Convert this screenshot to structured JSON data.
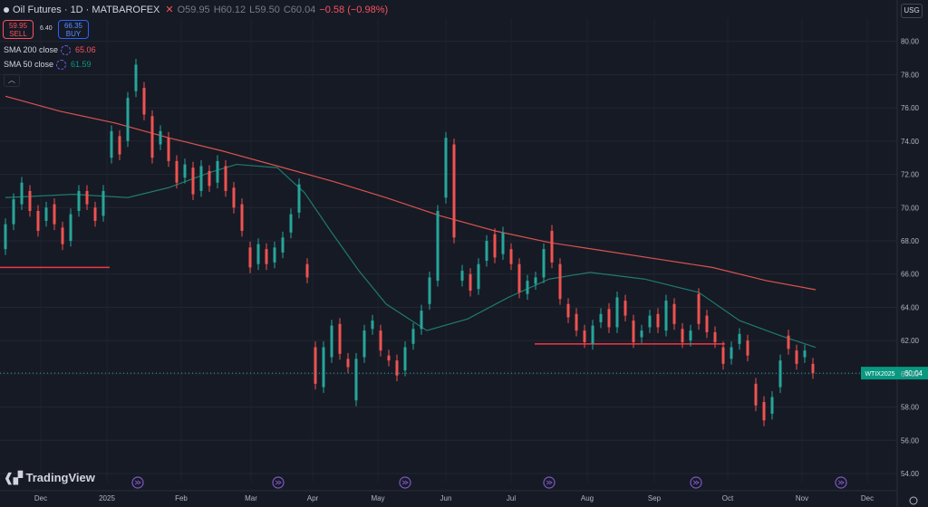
{
  "header": {
    "symbol": "Oil Futures · 1D · MATBAROFEX",
    "open": "O59.95",
    "high": "H60.12",
    "low": "L59.50",
    "close": "C60.04",
    "change": "−0.58 (−0.98%)",
    "sell_price": "59.95",
    "sell_label": "SELL",
    "buy_price": "66.35",
    "buy_label": "BUY",
    "spread": "6.40",
    "collapse_icon": "chevron-up-icon",
    "close_icon": "close-icon"
  },
  "indicators": [
    {
      "label": "SMA 200 close",
      "value": "65.06",
      "color": "#f7525f"
    },
    {
      "label": "SMA 50 close",
      "value": "61.59",
      "color": "#089981"
    }
  ],
  "currency_button": "USG",
  "price_tag": {
    "symbol": "WTIX2025",
    "value": "60.04",
    "color": "#089981"
  },
  "watermark": "TradingView",
  "colors": {
    "up": "#26a69a",
    "down": "#ef5350",
    "sma200": "#d9534f",
    "sma50": "#1f7a6d"
  },
  "chart_data": {
    "type": "candlestick",
    "ylim": [
      54.6,
      81.4
    ],
    "yticks": [
      "80.00",
      "78.00",
      "76.00",
      "74.00",
      "72.00",
      "70.00",
      "68.00",
      "66.00",
      "64.00",
      "62.00",
      "60.00",
      "58.00",
      "56.00",
      "54.00"
    ],
    "xticks": [
      "Dec",
      "2025",
      "Feb",
      "Mar",
      "Apr",
      "May",
      "Jun",
      "Jul",
      "Aug",
      "Sep",
      "Oct",
      "Nov",
      "Dec"
    ],
    "current_price": 60.04,
    "horizontal_lines": [
      {
        "from": "2024-11-21",
        "to": "2024-12-26",
        "y": 66.4
      },
      {
        "from": "2025-07-22",
        "to": "2025-09-29",
        "y": 61.8
      }
    ],
    "sma200": [
      [
        0,
        76.7
      ],
      [
        20,
        75.8
      ],
      [
        40,
        75.1
      ],
      [
        60,
        74.2
      ],
      [
        80,
        73.4
      ],
      [
        100,
        72.5
      ],
      [
        120,
        71.6
      ],
      [
        140,
        70.6
      ],
      [
        160,
        69.5
      ],
      [
        180,
        68.6
      ],
      [
        200,
        67.9
      ],
      [
        220,
        67.4
      ],
      [
        240,
        66.9
      ],
      [
        260,
        66.4
      ],
      [
        280,
        65.6
      ],
      [
        298,
        65.06
      ]
    ],
    "sma50": [
      [
        0,
        70.6
      ],
      [
        25,
        70.8
      ],
      [
        45,
        70.6
      ],
      [
        60,
        71.2
      ],
      [
        75,
        72.1
      ],
      [
        85,
        72.6
      ],
      [
        100,
        72.4
      ],
      [
        110,
        70.9
      ],
      [
        120,
        68.5
      ],
      [
        130,
        66.2
      ],
      [
        140,
        64.2
      ],
      [
        155,
        62.6
      ],
      [
        170,
        63.3
      ],
      [
        185,
        64.6
      ],
      [
        200,
        65.7
      ],
      [
        215,
        66.1
      ],
      [
        235,
        65.7
      ],
      [
        255,
        64.9
      ],
      [
        270,
        63.2
      ],
      [
        285,
        62.3
      ],
      [
        298,
        61.59
      ]
    ],
    "candles": [
      [
        0,
        67.5,
        69
      ],
      [
        3,
        69,
        70.5
      ],
      [
        6,
        70.2,
        71.5
      ],
      [
        9,
        71,
        69.8
      ],
      [
        12,
        69.8,
        68.6
      ],
      [
        15,
        69.2,
        70
      ],
      [
        18,
        70.2,
        69
      ],
      [
        21,
        68.8,
        67.8
      ],
      [
        24,
        68,
        69.6
      ],
      [
        27,
        69.8,
        71
      ],
      [
        30,
        71,
        70.2
      ],
      [
        33,
        70,
        69.2
      ],
      [
        36,
        69.5,
        71
      ],
      [
        39,
        73,
        74.6
      ],
      [
        42,
        74.3,
        73.2
      ],
      [
        45,
        74,
        76.6
      ],
      [
        48,
        77,
        78.6
      ],
      [
        51,
        77.2,
        75.6
      ],
      [
        54,
        75.5,
        73
      ],
      [
        57,
        73.8,
        74.6
      ],
      [
        60,
        74.2,
        72.8
      ],
      [
        63,
        72.8,
        71.5
      ],
      [
        66,
        71.8,
        72.6
      ],
      [
        69,
        72.4,
        70.8
      ],
      [
        72,
        71,
        72.5
      ],
      [
        75,
        72.2,
        71.3
      ],
      [
        78,
        71.5,
        72.8
      ],
      [
        81,
        72.5,
        71
      ],
      [
        84,
        71.2,
        70
      ],
      [
        87,
        70.2,
        68.6
      ],
      [
        90,
        67.6,
        66.4
      ],
      [
        93,
        66.6,
        67.8
      ],
      [
        96,
        67.5,
        66.6
      ],
      [
        99,
        66.7,
        67.6
      ],
      [
        102,
        67.3,
        68.2
      ],
      [
        105,
        68.5,
        69.6
      ],
      [
        108,
        69.7,
        71.4
      ],
      [
        111,
        66.6,
        65.8
      ],
      [
        114,
        61.6,
        59.4
      ],
      [
        117,
        59.2,
        61.6
      ],
      [
        120,
        61,
        62.9
      ],
      [
        123,
        63,
        61.2
      ],
      [
        126,
        60.9,
        60.4
      ],
      [
        129,
        58.4,
        60.9
      ],
      [
        132,
        61,
        62.6
      ],
      [
        135,
        62.7,
        63.2
      ],
      [
        138,
        62.6,
        61.4
      ],
      [
        141,
        61.1,
        60.8
      ],
      [
        144,
        60.8,
        59.9
      ],
      [
        147,
        60.2,
        61.6
      ],
      [
        150,
        61.8,
        62.7
      ],
      [
        153,
        62.7,
        63.8
      ],
      [
        156,
        64.2,
        65.8
      ],
      [
        159,
        65.6,
        69.8
      ],
      [
        162,
        70.6,
        74.2
      ],
      [
        165,
        73.8,
        68.2
      ],
      [
        168,
        65.6,
        66.2
      ],
      [
        171,
        66,
        65
      ],
      [
        174,
        65.1,
        66.6
      ],
      [
        177,
        66.8,
        68
      ],
      [
        180,
        68.4,
        67
      ],
      [
        183,
        67.2,
        68.5
      ],
      [
        186,
        67.5,
        66.6
      ],
      [
        189,
        66.6,
        64.9
      ],
      [
        192,
        64.8,
        65.6
      ],
      [
        195,
        65.4,
        65.8
      ],
      [
        198,
        65.8,
        67.5
      ],
      [
        201,
        68.6,
        66.7
      ],
      [
        204,
        66.6,
        64.5
      ],
      [
        207,
        64.2,
        63.4
      ],
      [
        210,
        63.6,
        62.6
      ],
      [
        213,
        62.6,
        61.9
      ],
      [
        216,
        61.8,
        62.9
      ],
      [
        219,
        63.1,
        63.6
      ],
      [
        222,
        63.9,
        62.8
      ],
      [
        225,
        62.8,
        64.6
      ],
      [
        228,
        64.4,
        63.5
      ],
      [
        231,
        63.2,
        61.9
      ],
      [
        234,
        62.2,
        62.6
      ],
      [
        237,
        62.8,
        63.5
      ],
      [
        240,
        63.6,
        62.8
      ],
      [
        243,
        62.6,
        64.4
      ],
      [
        246,
        64.2,
        63
      ],
      [
        249,
        62.7,
        61.9
      ],
      [
        252,
        62,
        62.6
      ],
      [
        255,
        64.8,
        63
      ],
      [
        258,
        63.5,
        62.5
      ],
      [
        261,
        62.5,
        61.9
      ],
      [
        264,
        61.6,
        60.6
      ],
      [
        267,
        60.9,
        61.6
      ],
      [
        270,
        61.8,
        62.4
      ],
      [
        273,
        62,
        61.1
      ],
      [
        276,
        59.4,
        58.1
      ],
      [
        279,
        58.3,
        57.2
      ],
      [
        282,
        57.6,
        58.6
      ],
      [
        285,
        59.2,
        60.8
      ],
      [
        288,
        62.3,
        61.5
      ],
      [
        291,
        61.4,
        60.6
      ],
      [
        294,
        61,
        61.4
      ],
      [
        297,
        60.6,
        60.04
      ]
    ]
  }
}
